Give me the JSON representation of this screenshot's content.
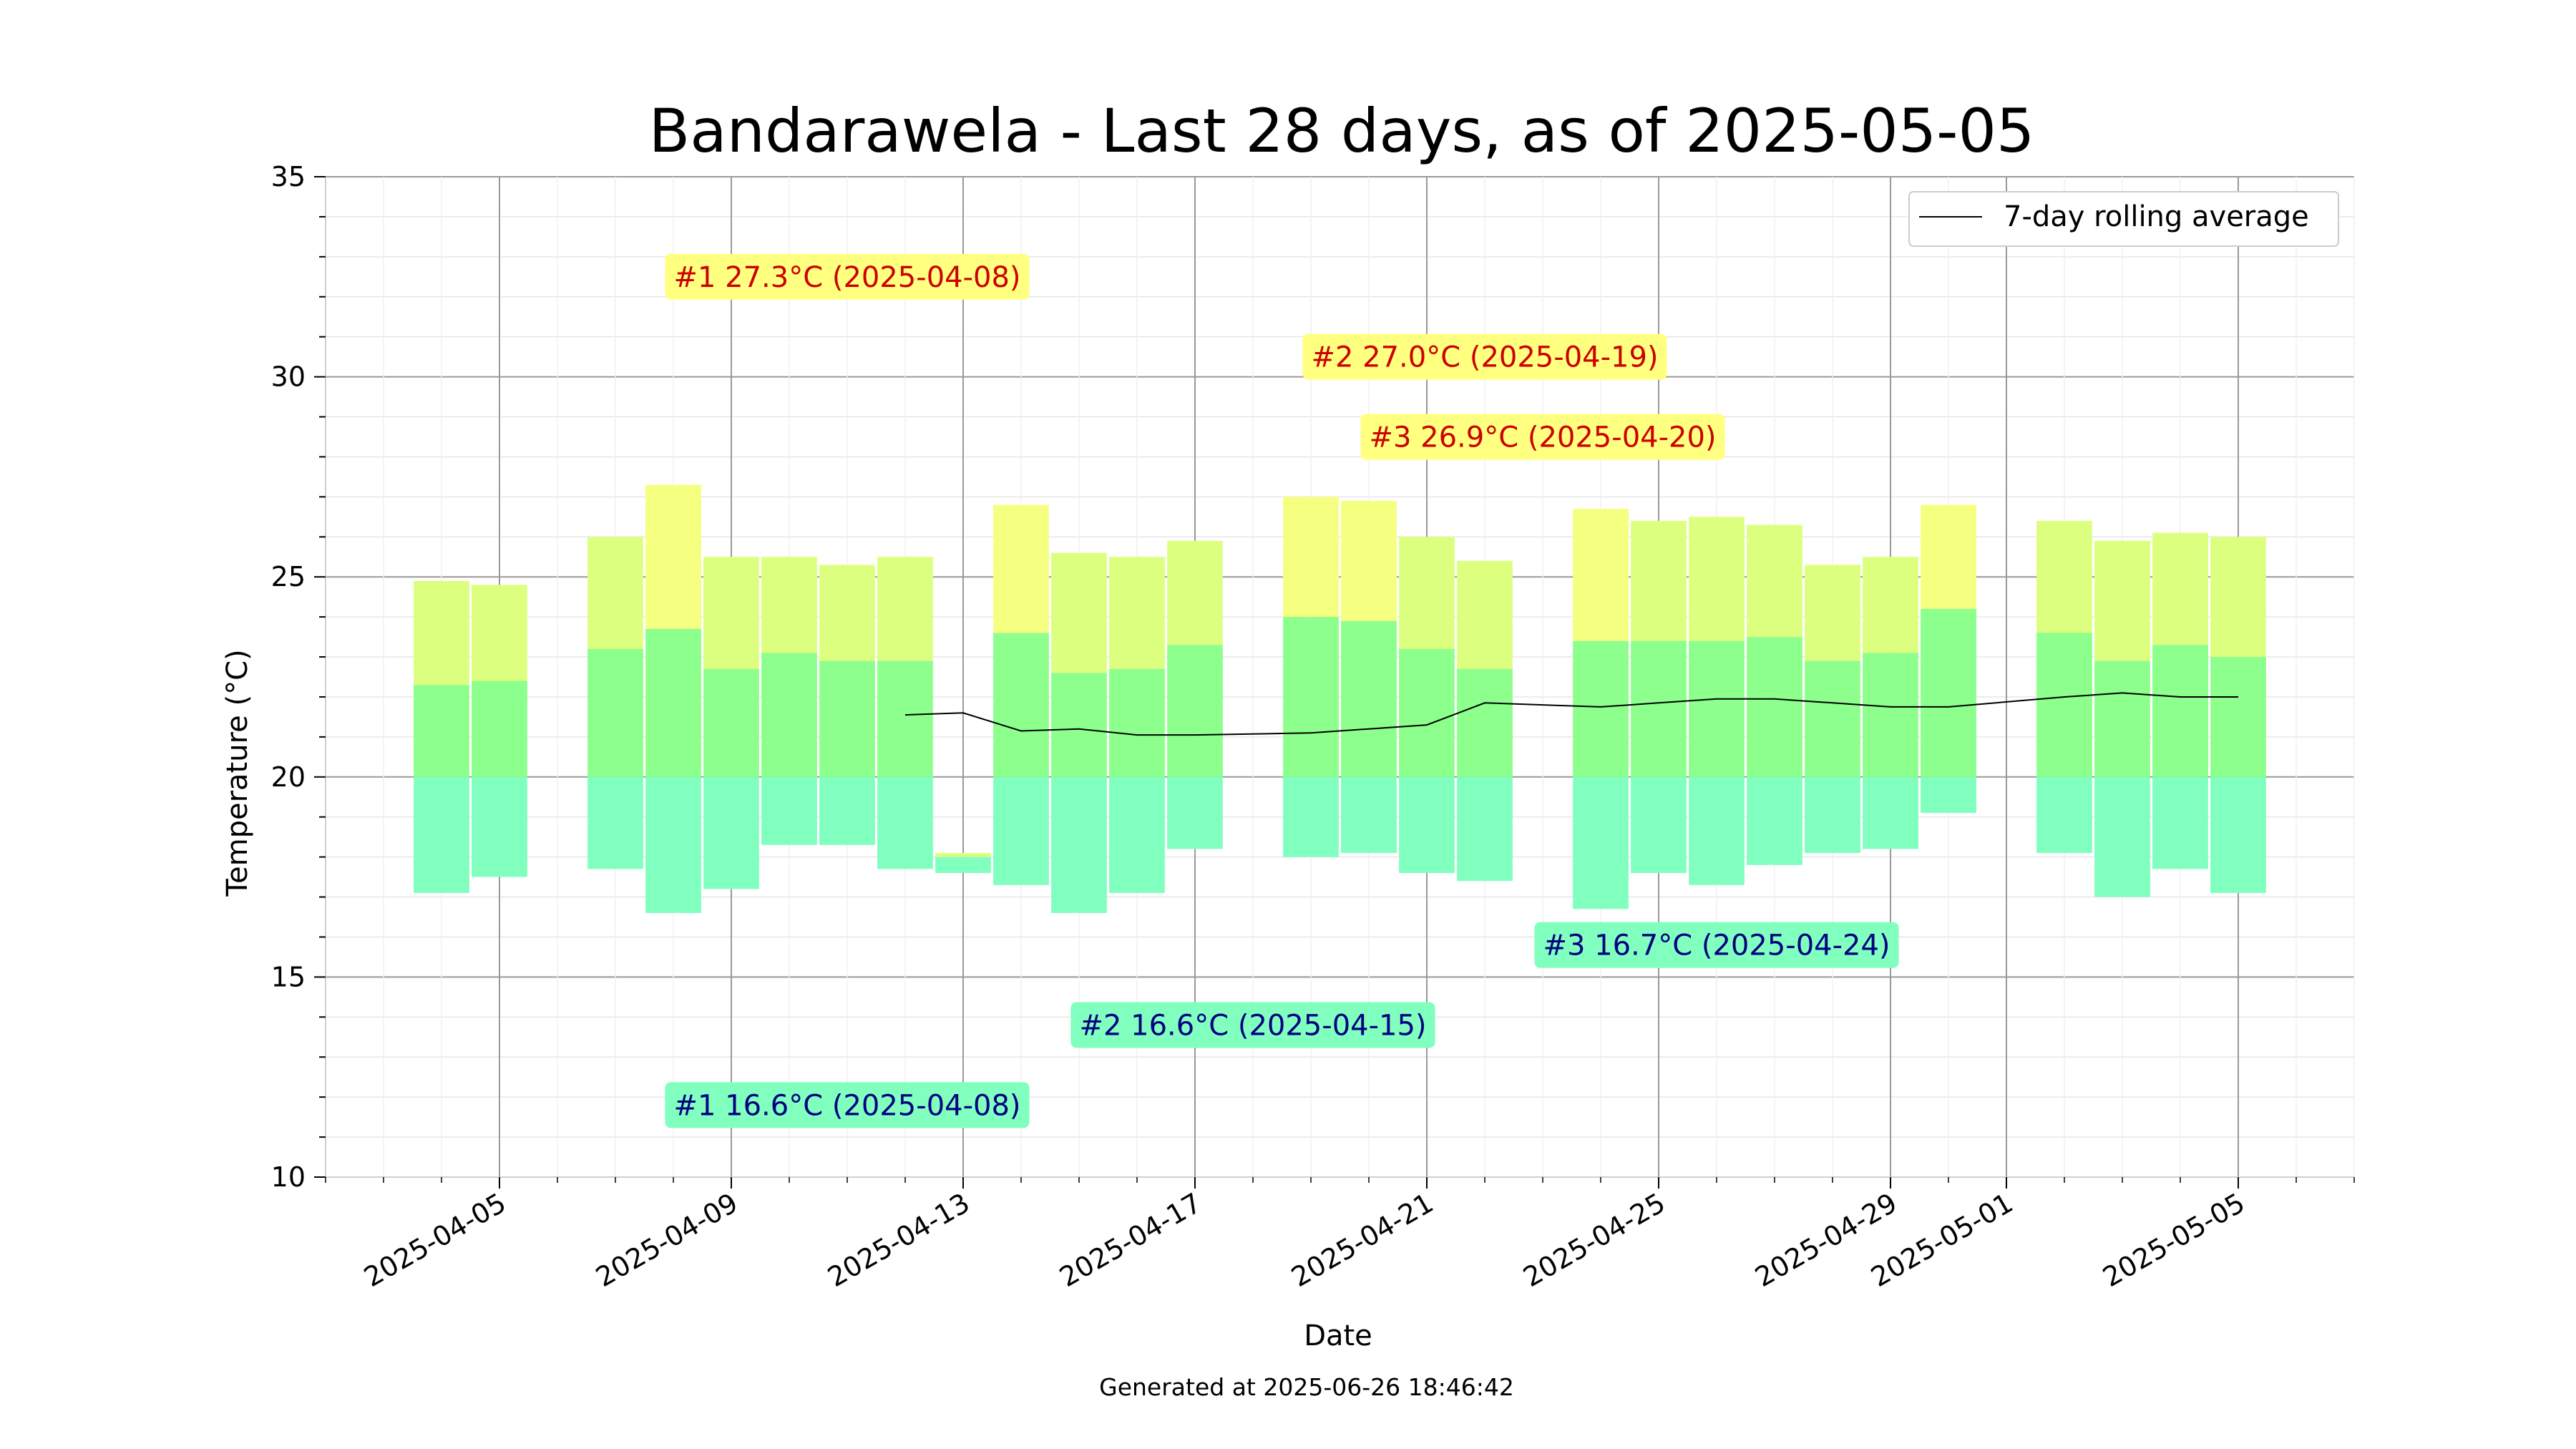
{
  "chart_data": {
    "type": "bar",
    "title": "Bandarawela - Last 28 days, as of 2025-05-05",
    "xlabel": "Date",
    "ylabel": "Temperature (°C)",
    "footer": "Generated at 2025-06-26 18:46:42",
    "ylim": [
      10,
      35
    ],
    "xlim": [
      "2025-04-02",
      "2025-05-07"
    ],
    "y_ticks": [
      "10",
      "15",
      "20",
      "25",
      "30",
      "35"
    ],
    "x_ticks": [
      "2025-04-05",
      "2025-04-09",
      "2025-04-13",
      "2025-04-17",
      "2025-04-21",
      "2025-04-25",
      "2025-04-29",
      "2025-05-01",
      "2025-05-05"
    ],
    "grid": true,
    "legend": {
      "position": "top-right",
      "entries": [
        "7-day rolling average"
      ]
    },
    "series": [
      {
        "name": "",
        "description": "daily range bars (max/min) plus mean",
        "points": [
          {
            "date": "2025-04-04",
            "max": 24.9,
            "mean": 22.3,
            "min": 17.1
          },
          {
            "date": "2025-04-05",
            "max": 24.8,
            "mean": 22.4,
            "min": 17.5
          },
          {
            "date": "2025-04-07",
            "max": 26.0,
            "mean": 23.2,
            "min": 17.7
          },
          {
            "date": "2025-04-08",
            "max": 27.3,
            "mean": 23.7,
            "min": 16.6
          },
          {
            "date": "2025-04-09",
            "max": 25.5,
            "mean": 22.7,
            "min": 17.2
          },
          {
            "date": "2025-04-10",
            "max": 25.5,
            "mean": 23.1,
            "min": 18.3
          },
          {
            "date": "2025-04-11",
            "max": 25.3,
            "mean": 22.9,
            "min": 18.3
          },
          {
            "date": "2025-04-12",
            "max": 25.5,
            "mean": 22.9,
            "min": 17.7
          },
          {
            "date": "2025-04-13",
            "max": 18.1,
            "mean": 18.0,
            "min": 17.6
          },
          {
            "date": "2025-04-14",
            "max": 26.8,
            "mean": 23.6,
            "min": 17.3
          },
          {
            "date": "2025-04-15",
            "max": 25.6,
            "mean": 22.6,
            "min": 16.6
          },
          {
            "date": "2025-04-16",
            "max": 25.5,
            "mean": 22.7,
            "min": 17.1
          },
          {
            "date": "2025-04-17",
            "max": 25.9,
            "mean": 23.3,
            "min": 18.2
          },
          {
            "date": "2025-04-19",
            "max": 27.0,
            "mean": 24.0,
            "min": 18.0
          },
          {
            "date": "2025-04-20",
            "max": 26.9,
            "mean": 23.9,
            "min": 18.1
          },
          {
            "date": "2025-04-21",
            "max": 26.0,
            "mean": 23.2,
            "min": 17.6
          },
          {
            "date": "2025-04-22",
            "max": 25.4,
            "mean": 22.7,
            "min": 17.4
          },
          {
            "date": "2025-04-24",
            "max": 26.7,
            "mean": 23.4,
            "min": 16.7
          },
          {
            "date": "2025-04-25",
            "max": 26.4,
            "mean": 23.4,
            "min": 17.6
          },
          {
            "date": "2025-04-26",
            "max": 26.5,
            "mean": 23.4,
            "min": 17.3
          },
          {
            "date": "2025-04-27",
            "max": 26.3,
            "mean": 23.5,
            "min": 17.8
          },
          {
            "date": "2025-04-28",
            "max": 25.3,
            "mean": 22.9,
            "min": 18.1
          },
          {
            "date": "2025-04-29",
            "max": 25.5,
            "mean": 23.1,
            "min": 18.2
          },
          {
            "date": "2025-04-30",
            "max": 26.8,
            "mean": 24.2,
            "min": 19.1
          },
          {
            "date": "2025-05-02",
            "max": 26.4,
            "mean": 23.6,
            "min": 18.1
          },
          {
            "date": "2025-05-03",
            "max": 25.9,
            "mean": 22.9,
            "min": 17.0
          },
          {
            "date": "2025-05-04",
            "max": 26.1,
            "mean": 23.3,
            "min": 17.7
          },
          {
            "date": "2025-05-05",
            "max": 26.0,
            "mean": 23.0,
            "min": 17.1
          }
        ]
      },
      {
        "name": "7-day rolling average",
        "type": "line",
        "x": [
          "2025-04-12",
          "2025-04-13",
          "2025-04-14",
          "2025-04-15",
          "2025-04-16",
          "2025-04-17",
          "2025-04-19",
          "2025-04-20",
          "2025-04-21",
          "2025-04-22",
          "2025-04-24",
          "2025-04-25",
          "2025-04-26",
          "2025-04-27",
          "2025-04-28",
          "2025-04-29",
          "2025-04-30",
          "2025-05-02",
          "2025-05-03",
          "2025-05-04",
          "2025-05-05"
        ],
        "values": [
          21.55,
          21.6,
          21.15,
          21.2,
          21.05,
          21.05,
          21.1,
          21.2,
          21.3,
          21.85,
          21.75,
          21.85,
          21.95,
          21.95,
          21.85,
          21.75,
          21.75,
          22.0,
          22.1,
          22.0,
          22.0
        ]
      }
    ],
    "annotations": [
      {
        "text": "#1 27.3°C (2025-04-08)",
        "kind": "max",
        "x": "2025-04-11",
        "y": 32.5
      },
      {
        "text": "#2 27.0°C (2025-04-19)",
        "kind": "max",
        "x": "2025-04-22",
        "y": 30.5
      },
      {
        "text": "#3 26.9°C (2025-04-20)",
        "kind": "max",
        "x": "2025-04-23",
        "y": 28.5
      },
      {
        "text": "#1 16.6°C (2025-04-08)",
        "kind": "min",
        "x": "2025-04-11",
        "y": 11.8
      },
      {
        "text": "#2 16.6°C (2025-04-15)",
        "kind": "min",
        "x": "2025-04-18",
        "y": 13.8
      },
      {
        "text": "#3 16.7°C (2025-04-24)",
        "kind": "min",
        "x": "2025-04-26",
        "y": 15.8
      }
    ],
    "colors": {
      "max_label_bg": "#ffff80",
      "max_label_text": "#cc0000",
      "min_label_bg": "#80ffbf",
      "min_label_text": "#000080",
      "rolling_line": "#000000"
    }
  }
}
